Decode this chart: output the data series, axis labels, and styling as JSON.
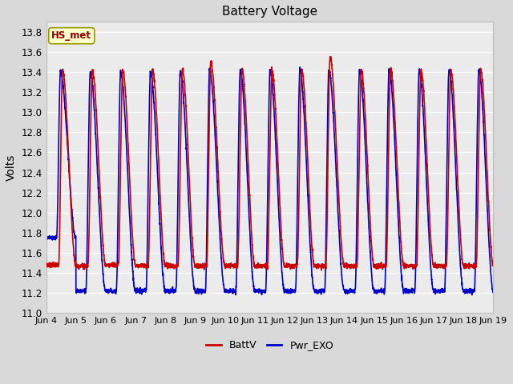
{
  "title": "Battery Voltage",
  "ylabel": "Volts",
  "ylim": [
    11.0,
    13.9
  ],
  "yticks": [
    11.0,
    11.2,
    11.4,
    11.6,
    11.8,
    12.0,
    12.2,
    12.4,
    12.6,
    12.8,
    13.0,
    13.2,
    13.4,
    13.6,
    13.8
  ],
  "xtick_labels": [
    "Jun 4",
    "Jun 5",
    "Jun 6",
    "Jun 7",
    "Jun 8",
    "Jun 9",
    "Jun 10",
    "Jun 11",
    "Jun 12",
    "Jun 13",
    "Jun 14",
    "Jun 15",
    "Jun 16",
    "Jun 17",
    "Jun 18",
    "Jun 19"
  ],
  "color_battv": "#cc0000",
  "color_pwr": "#0000cc",
  "annotation_text": "HS_met",
  "annotation_color": "#8b0000",
  "annotation_bg": "#ffffcc",
  "annotation_edge": "#999900",
  "legend_battv": "BattV",
  "legend_pwr": "Pwr_EXO",
  "bg_color": "#d9d9d9",
  "plot_bg_color": "#ebebeb",
  "grid_color": "#ffffff",
  "linewidth": 1.2
}
